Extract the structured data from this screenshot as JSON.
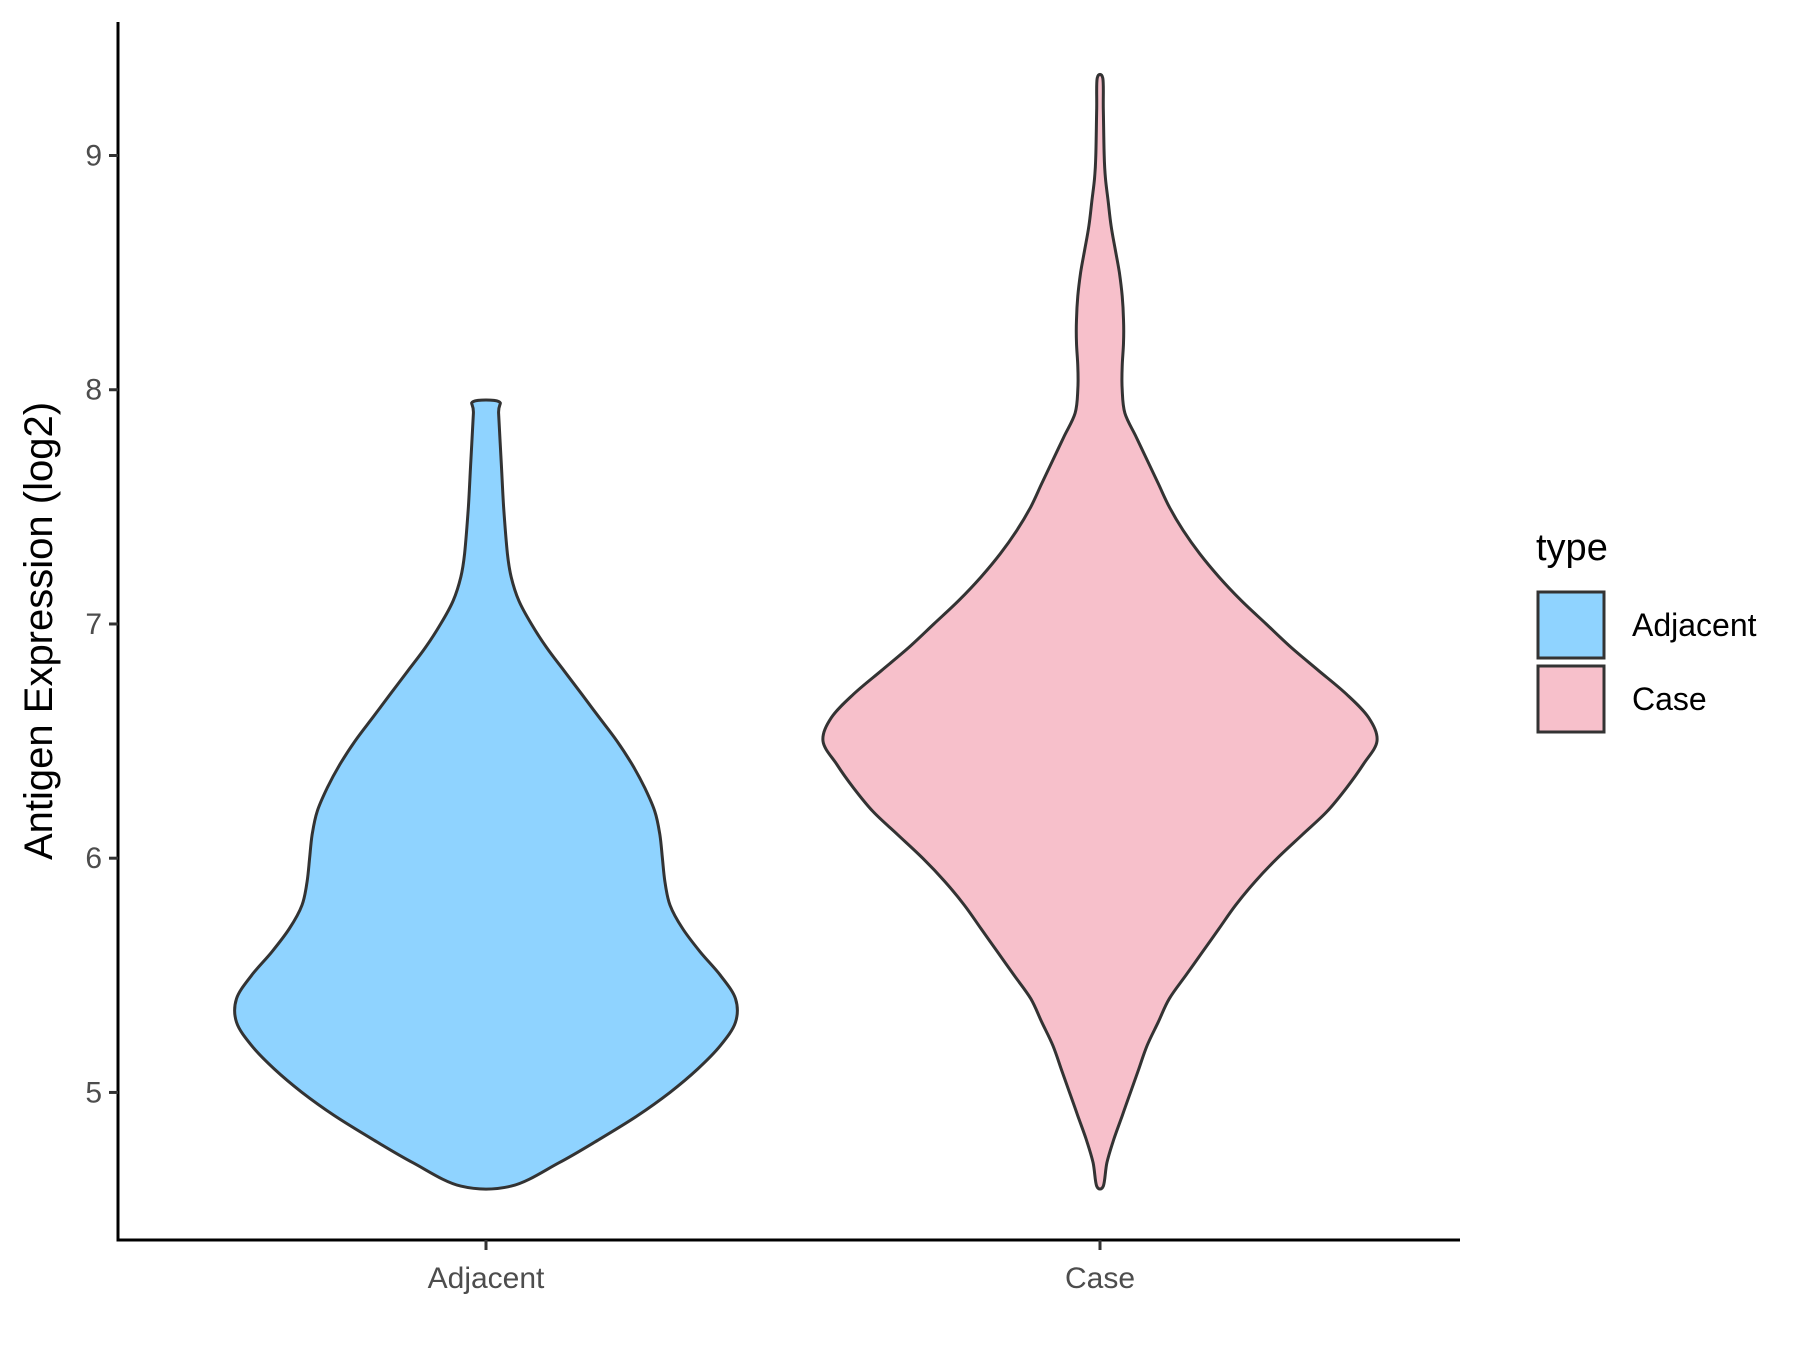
{
  "chart_data": {
    "type": "violin",
    "ylabel": "Antigen Expression (log2)",
    "xlabel": "",
    "ylim": [
      4.37,
      9.57
    ],
    "yticks": [
      5,
      6,
      7,
      8,
      9
    ],
    "categories": [
      "Adjacent",
      "Case"
    ],
    "legend": {
      "title": "type",
      "position": "right",
      "entries": [
        "Adjacent",
        "Case"
      ]
    },
    "series": [
      {
        "name": "Adjacent",
        "color": "#8fd3ff",
        "range": [
          4.6,
          7.95
        ],
        "density_profile": [
          [
            4.6,
            0.1
          ],
          [
            4.7,
            0.29
          ],
          [
            4.8,
            0.45
          ],
          [
            4.9,
            0.6
          ],
          [
            5.0,
            0.73
          ],
          [
            5.1,
            0.84
          ],
          [
            5.2,
            0.93
          ],
          [
            5.3,
            0.99
          ],
          [
            5.4,
            0.99
          ],
          [
            5.5,
            0.93
          ],
          [
            5.6,
            0.85
          ],
          [
            5.7,
            0.78
          ],
          [
            5.8,
            0.73
          ],
          [
            5.9,
            0.71
          ],
          [
            6.0,
            0.7
          ],
          [
            6.1,
            0.69
          ],
          [
            6.2,
            0.67
          ],
          [
            6.3,
            0.63
          ],
          [
            6.4,
            0.58
          ],
          [
            6.5,
            0.52
          ],
          [
            6.6,
            0.45
          ],
          [
            6.7,
            0.38
          ],
          [
            6.8,
            0.31
          ],
          [
            6.9,
            0.24
          ],
          [
            7.0,
            0.18
          ],
          [
            7.1,
            0.13
          ],
          [
            7.2,
            0.1
          ],
          [
            7.3,
            0.085
          ],
          [
            7.5,
            0.07
          ],
          [
            7.7,
            0.06
          ],
          [
            7.9,
            0.05
          ],
          [
            7.95,
            0.05
          ]
        ]
      },
      {
        "name": "Case",
        "color": "#f7c0cb",
        "range": [
          4.6,
          9.33
        ],
        "density_profile": [
          [
            4.6,
            0.012
          ],
          [
            4.7,
            0.025
          ],
          [
            4.8,
            0.05
          ],
          [
            4.9,
            0.08
          ],
          [
            5.0,
            0.11
          ],
          [
            5.1,
            0.14
          ],
          [
            5.2,
            0.17
          ],
          [
            5.3,
            0.21
          ],
          [
            5.4,
            0.25
          ],
          [
            5.5,
            0.31
          ],
          [
            5.6,
            0.37
          ],
          [
            5.7,
            0.43
          ],
          [
            5.8,
            0.49
          ],
          [
            5.9,
            0.56
          ],
          [
            6.0,
            0.64
          ],
          [
            6.1,
            0.73
          ],
          [
            6.2,
            0.82
          ],
          [
            6.3,
            0.89
          ],
          [
            6.4,
            0.95
          ],
          [
            6.5,
            1.0
          ],
          [
            6.6,
            0.97
          ],
          [
            6.7,
            0.89
          ],
          [
            6.8,
            0.79
          ],
          [
            6.9,
            0.69
          ],
          [
            7.0,
            0.6
          ],
          [
            7.1,
            0.51
          ],
          [
            7.2,
            0.43
          ],
          [
            7.3,
            0.36
          ],
          [
            7.4,
            0.3
          ],
          [
            7.5,
            0.25
          ],
          [
            7.6,
            0.21
          ],
          [
            7.7,
            0.17
          ],
          [
            7.8,
            0.13
          ],
          [
            7.9,
            0.09
          ],
          [
            8.0,
            0.08
          ],
          [
            8.1,
            0.08
          ],
          [
            8.2,
            0.085
          ],
          [
            8.3,
            0.085
          ],
          [
            8.4,
            0.08
          ],
          [
            8.5,
            0.07
          ],
          [
            8.6,
            0.055
          ],
          [
            8.7,
            0.04
          ],
          [
            8.8,
            0.03
          ],
          [
            8.9,
            0.02
          ],
          [
            9.0,
            0.015
          ],
          [
            9.2,
            0.012
          ],
          [
            9.33,
            0.01
          ]
        ]
      }
    ]
  }
}
